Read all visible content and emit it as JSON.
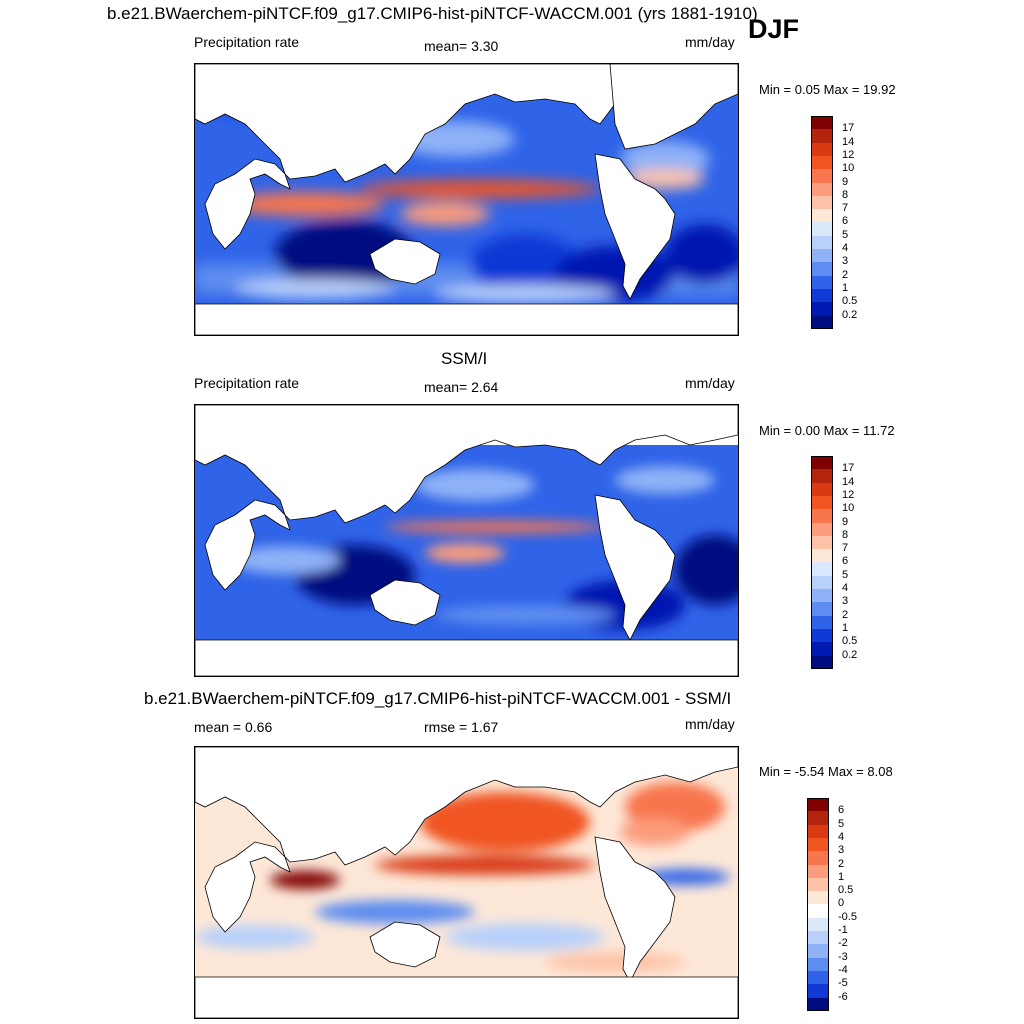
{
  "figure": {
    "title": "b.e21.BWaerchem-piNTCF.f09_g17.CMIP6-hist-piNTCF-WACCM.001 (yrs 1881-1910)",
    "season": "DJF"
  },
  "panels": [
    {
      "id": "model",
      "title": "",
      "left_label": "Precipitation rate",
      "center_label": "mean=   3.30",
      "units": "mm/day",
      "minmax": "Min =   0.05 Max =  19.92",
      "levels": [
        "17",
        "14",
        "12",
        "10",
        "9",
        "8",
        "7",
        "6",
        "5",
        "4",
        "3",
        "2",
        "1",
        "0.5",
        "0.2"
      ],
      "colors": [
        "#800000",
        "#b3240c",
        "#d93a12",
        "#f05420",
        "#f8764e",
        "#fb9c7c",
        "#fdc3a8",
        "#fde8d8",
        "#dbe8fb",
        "#b8d0fa",
        "#8fb2f7",
        "#5d8df0",
        "#2f63e8",
        "#1039d6",
        "#0019b0",
        "#000c80"
      ]
    },
    {
      "id": "obs",
      "title": "SSM/I",
      "left_label": "Precipitation rate",
      "center_label": "mean=   2.64",
      "units": "mm/day",
      "minmax": "Min =   0.00 Max =  11.72",
      "levels": [
        "17",
        "14",
        "12",
        "10",
        "9",
        "8",
        "7",
        "6",
        "5",
        "4",
        "3",
        "2",
        "1",
        "0.5",
        "0.2"
      ],
      "colors": [
        "#800000",
        "#b3240c",
        "#d93a12",
        "#f05420",
        "#f8764e",
        "#fb9c7c",
        "#fdc3a8",
        "#fde8d8",
        "#dbe8fb",
        "#b8d0fa",
        "#8fb2f7",
        "#5d8df0",
        "#2f63e8",
        "#1039d6",
        "#0019b0",
        "#000c80"
      ]
    },
    {
      "id": "diff",
      "title": "b.e21.BWaerchem-piNTCF.f09_g17.CMIP6-hist-piNTCF-WACCM.001 - SSM/I",
      "left_label": "mean =   0.66",
      "center_label": "rmse =   1.67",
      "units": "mm/day",
      "minmax": "Min =  -5.54 Max =   8.08",
      "levels": [
        "6",
        "5",
        "4",
        "3",
        "2",
        "1",
        "0.5",
        "0",
        "-0.5",
        "-1",
        "-2",
        "-3",
        "-4",
        "-5",
        "-6"
      ],
      "colors": [
        "#800000",
        "#b3240c",
        "#d93a12",
        "#f05420",
        "#f8764e",
        "#fb9c7c",
        "#fdc3a8",
        "#fde8d8",
        "#ffffff",
        "#dbe8fb",
        "#b8d0fa",
        "#8fb2f7",
        "#5d8df0",
        "#2f63e8",
        "#1039d6",
        "#000c80"
      ]
    }
  ]
}
